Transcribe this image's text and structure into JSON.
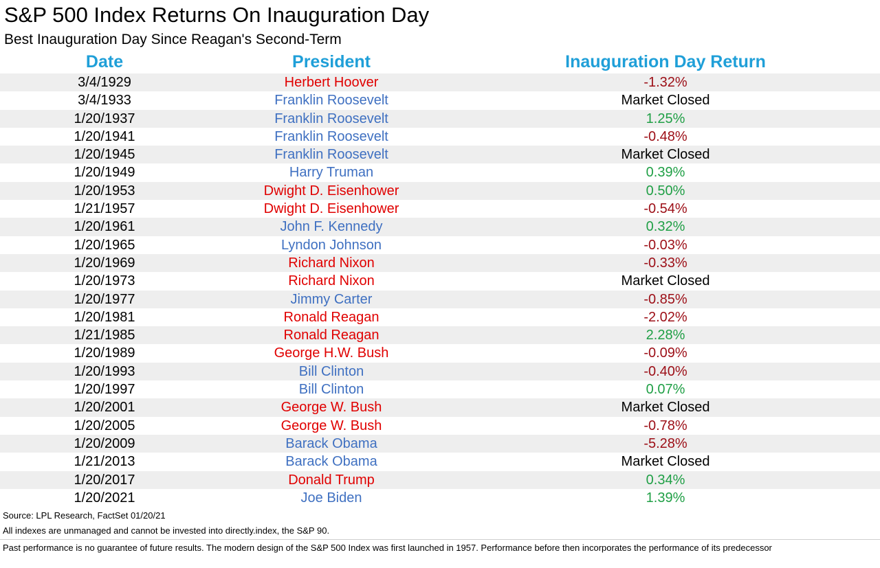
{
  "title": "S&P 500 Index Returns On Inauguration Day",
  "subtitle": "Best Inauguration Day Since Reagan's Second-Term",
  "colors": {
    "header": "#1f9fd8",
    "republican": "#e00000",
    "democrat": "#3f70c1",
    "negative": "#9c0e16",
    "positive": "#1f9f45",
    "closed": "#000000",
    "row_shade": "#eeeeee"
  },
  "chart_data": {
    "type": "table",
    "columns": [
      "Date",
      "President",
      "Inauguration Day Return"
    ],
    "rows": [
      {
        "date": "3/4/1929",
        "president": "Herbert Hoover",
        "party": "R",
        "return": "-1.32%",
        "value": -1.32
      },
      {
        "date": "3/4/1933",
        "president": "Franklin Roosevelt",
        "party": "D",
        "return": "Market Closed",
        "value": null
      },
      {
        "date": "1/20/1937",
        "president": "Franklin Roosevelt",
        "party": "D",
        "return": "1.25%",
        "value": 1.25
      },
      {
        "date": "1/20/1941",
        "president": "Franklin Roosevelt",
        "party": "D",
        "return": "-0.48%",
        "value": -0.48
      },
      {
        "date": "1/20/1945",
        "president": "Franklin Roosevelt",
        "party": "D",
        "return": "Market Closed",
        "value": null
      },
      {
        "date": "1/20/1949",
        "president": "Harry Truman",
        "party": "D",
        "return": "0.39%",
        "value": 0.39
      },
      {
        "date": "1/20/1953",
        "president": "Dwight D. Eisenhower",
        "party": "R",
        "return": "0.50%",
        "value": 0.5
      },
      {
        "date": "1/21/1957",
        "president": "Dwight D. Eisenhower",
        "party": "R",
        "return": "-0.54%",
        "value": -0.54
      },
      {
        "date": "1/20/1961",
        "president": "John F. Kennedy",
        "party": "D",
        "return": "0.32%",
        "value": 0.32
      },
      {
        "date": "1/20/1965",
        "president": "Lyndon Johnson",
        "party": "D",
        "return": "-0.03%",
        "value": -0.03
      },
      {
        "date": "1/20/1969",
        "president": "Richard Nixon",
        "party": "R",
        "return": "-0.33%",
        "value": -0.33
      },
      {
        "date": "1/20/1973",
        "president": "Richard Nixon",
        "party": "R",
        "return": "Market Closed",
        "value": null
      },
      {
        "date": "1/20/1977",
        "president": "Jimmy Carter",
        "party": "D",
        "return": "-0.85%",
        "value": -0.85
      },
      {
        "date": "1/20/1981",
        "president": "Ronald Reagan",
        "party": "R",
        "return": "-2.02%",
        "value": -2.02
      },
      {
        "date": "1/21/1985",
        "president": "Ronald Reagan",
        "party": "R",
        "return": "2.28%",
        "value": 2.28
      },
      {
        "date": "1/20/1989",
        "president": "George H.W. Bush",
        "party": "R",
        "return": "-0.09%",
        "value": -0.09
      },
      {
        "date": "1/20/1993",
        "president": "Bill Clinton",
        "party": "D",
        "return": "-0.40%",
        "value": -0.4
      },
      {
        "date": "1/20/1997",
        "president": "Bill Clinton",
        "party": "D",
        "return": "0.07%",
        "value": 0.07
      },
      {
        "date": "1/20/2001",
        "president": "George W. Bush",
        "party": "R",
        "return": "Market Closed",
        "value": null
      },
      {
        "date": "1/20/2005",
        "president": "George W. Bush",
        "party": "R",
        "return": "-0.78%",
        "value": -0.78
      },
      {
        "date": "1/20/2009",
        "president": "Barack Obama",
        "party": "D",
        "return": "-5.28%",
        "value": -5.28
      },
      {
        "date": "1/21/2013",
        "president": "Barack Obama",
        "party": "D",
        "return": "Market Closed",
        "value": null
      },
      {
        "date": "1/20/2017",
        "president": "Donald Trump",
        "party": "R",
        "return": "0.34%",
        "value": 0.34
      },
      {
        "date": "1/20/2021",
        "president": "Joe Biden",
        "party": "D",
        "return": "1.39%",
        "value": 1.39
      }
    ]
  },
  "footer": {
    "source": "Source: LPL Research, FactSet 01/20/21",
    "disclaimer_1": "All indexes are unmanaged and cannot be invested into directly.index, the S&P 90.",
    "disclaimer_2": "Past performance is no guarantee of future results. The modern design of the S&P 500 Index was first launched in 1957. Performance before then incorporates the performance of its predecessor"
  }
}
